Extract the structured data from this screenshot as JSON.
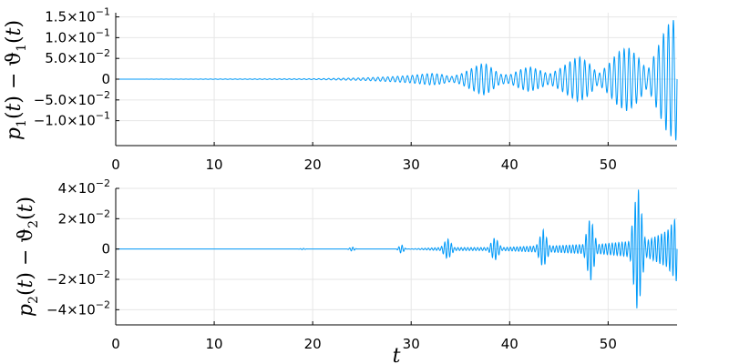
{
  "chart_data": [
    {
      "type": "line",
      "ylabel": "p₁(t) − ϑ₁(t)",
      "xlim": [
        0,
        57
      ],
      "ylim": [
        -0.16,
        0.16
      ],
      "grid": true,
      "legend": "none",
      "color": "#009af9",
      "xticks": [
        0,
        10,
        20,
        30,
        40,
        50
      ],
      "xtick_labels": [
        "0",
        "10",
        "20",
        "30",
        "40",
        "50"
      ],
      "yticks": [
        -0.1,
        -0.05,
        0,
        0.05,
        0.1,
        0.15
      ],
      "ytick_labels": [
        {
          "mant": "−1.0×10",
          "exp": "−1"
        },
        {
          "mant": "−5.0×10",
          "exp": "−2"
        },
        {
          "mant": "0",
          "exp": ""
        },
        {
          "mant": "5.0×10",
          "exp": "−2"
        },
        {
          "mant": "1.0×10",
          "exp": "−1"
        },
        {
          "mant": "1.5×10",
          "exp": "−1"
        }
      ],
      "oscillation_freq": 2.0,
      "envelope": {
        "t": [
          0,
          20,
          25,
          28,
          30,
          32,
          33,
          34,
          35,
          36,
          37,
          37.5,
          38,
          39,
          40,
          41,
          42,
          43,
          44,
          45,
          46,
          47,
          48,
          49,
          50,
          51,
          52,
          53,
          54,
          55,
          56,
          57
        ],
        "amp": [
          0,
          0.001,
          0.003,
          0.006,
          0.009,
          0.014,
          0.012,
          0.006,
          0.012,
          0.024,
          0.036,
          0.038,
          0.03,
          0.012,
          0.01,
          0.022,
          0.03,
          0.022,
          0.012,
          0.024,
          0.04,
          0.055,
          0.04,
          0.012,
          0.035,
          0.065,
          0.078,
          0.055,
          0.02,
          0.075,
          0.13,
          0.15
        ]
      }
    },
    {
      "type": "line",
      "xlabel": "t",
      "ylabel": "p₂(t) − ϑ₂(t)",
      "xlim": [
        0,
        57
      ],
      "ylim": [
        -0.05,
        0.04
      ],
      "grid": true,
      "legend": "none",
      "color": "#009af9",
      "xticks": [
        0,
        10,
        20,
        30,
        40,
        50
      ],
      "xtick_labels": [
        "0",
        "10",
        "20",
        "30",
        "40",
        "50"
      ],
      "yticks": [
        -0.04,
        -0.02,
        0,
        0.02,
        0.04
      ],
      "ytick_labels": [
        {
          "mant": "−4×10",
          "exp": "−2"
        },
        {
          "mant": "−2×10",
          "exp": "−2"
        },
        {
          "mant": "0",
          "exp": ""
        },
        {
          "mant": "2×10",
          "exp": "−2"
        },
        {
          "mant": "4×10",
          "exp": "−2"
        }
      ],
      "oscillation_freq": 3.0,
      "envelope": {
        "t": [
          0,
          18.5,
          19,
          19.5,
          23.5,
          24,
          24.5,
          28.5,
          29,
          29.5,
          33,
          33.7,
          34.4,
          37.8,
          38.5,
          39.2,
          42.7,
          43.4,
          44.1,
          47.5,
          48.2,
          48.9,
          52.2,
          53,
          53.8,
          56,
          57
        ],
        "amp": [
          0,
          0,
          0.0005,
          0,
          0,
          0.0015,
          0,
          0,
          0.003,
          0,
          0.001,
          0.007,
          0.001,
          0.001,
          0.008,
          0.001,
          0.002,
          0.013,
          0.002,
          0.003,
          0.022,
          0.003,
          0.005,
          0.043,
          0.005,
          0.012,
          0.022
        ]
      }
    }
  ]
}
